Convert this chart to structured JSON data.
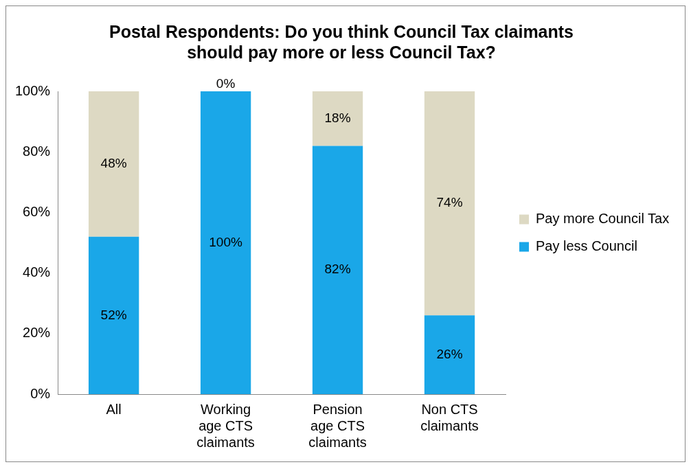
{
  "chart_data": {
    "type": "bar",
    "title": "Postal Respondents: Do you think Council Tax claimants should pay more or less Council Tax?",
    "categories": [
      "All",
      "Working age CTS claimants",
      "Pension age CTS claimants",
      "Non CTS claimants"
    ],
    "stacked": true,
    "series": [
      {
        "name": "Pay less Council",
        "color": "#1aa7e8",
        "values": [
          52,
          100,
          82,
          26
        ],
        "value_labels": [
          "52%",
          "100%",
          "82%",
          "26%"
        ]
      },
      {
        "name": "Pay more Council Tax",
        "color": "#ddd9c3",
        "values": [
          48,
          0,
          18,
          74
        ],
        "value_labels": [
          "48%",
          "0%",
          "18%",
          "74%"
        ]
      }
    ],
    "ylim": [
      0,
      100
    ],
    "yticks": [
      {
        "value": 0,
        "label": "0%"
      },
      {
        "value": 20,
        "label": "20%"
      },
      {
        "value": 40,
        "label": "40%"
      },
      {
        "value": 60,
        "label": "60%"
      },
      {
        "value": 80,
        "label": "80%"
      },
      {
        "value": 100,
        "label": "100%"
      }
    ],
    "grid": false,
    "legend": "right"
  }
}
